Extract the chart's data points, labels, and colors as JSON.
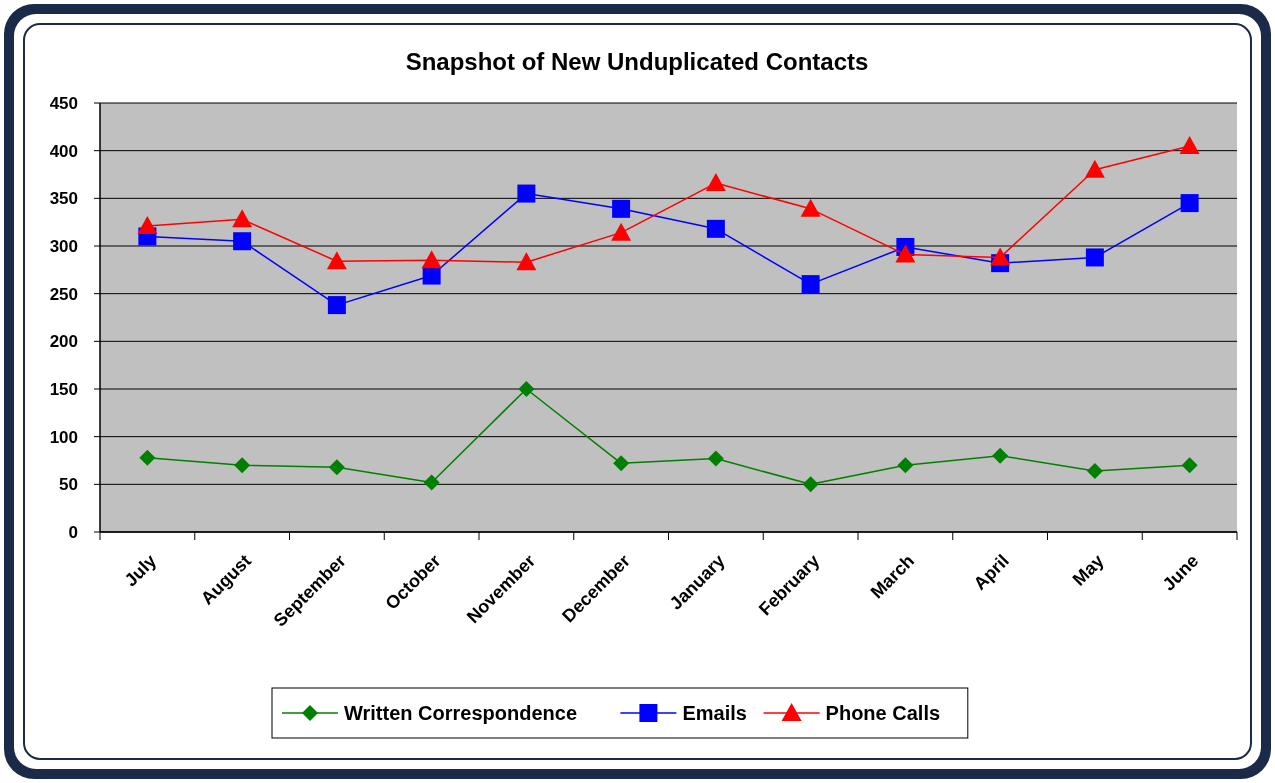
{
  "chart_data": {
    "type": "line",
    "title": "Snapshot of New Unduplicated Contacts",
    "categories": [
      "July",
      "August",
      "September",
      "October",
      "November",
      "December",
      "January",
      "February",
      "March",
      "April",
      "May",
      "June"
    ],
    "series": [
      {
        "name": "Written Correspondence",
        "color": "#008000",
        "marker": "diamond",
        "values": [
          78,
          70,
          68,
          52,
          150,
          72,
          77,
          50,
          70,
          80,
          64,
          70
        ]
      },
      {
        "name": "Emails",
        "color": "#0000ff",
        "marker": "square",
        "values": [
          310,
          305,
          238,
          269,
          355,
          339,
          318,
          260,
          299,
          282,
          288,
          345
        ]
      },
      {
        "name": "Phone Calls",
        "color": "#ff0000",
        "marker": "triangle",
        "values": [
          321,
          328,
          284,
          285,
          283,
          314,
          366,
          339,
          291,
          288,
          380,
          405
        ]
      }
    ],
    "ylim": [
      0,
      450
    ],
    "yticks": [
      0,
      50,
      100,
      150,
      200,
      250,
      300,
      350,
      400,
      450
    ],
    "grid": "y",
    "legend": "bottom"
  }
}
